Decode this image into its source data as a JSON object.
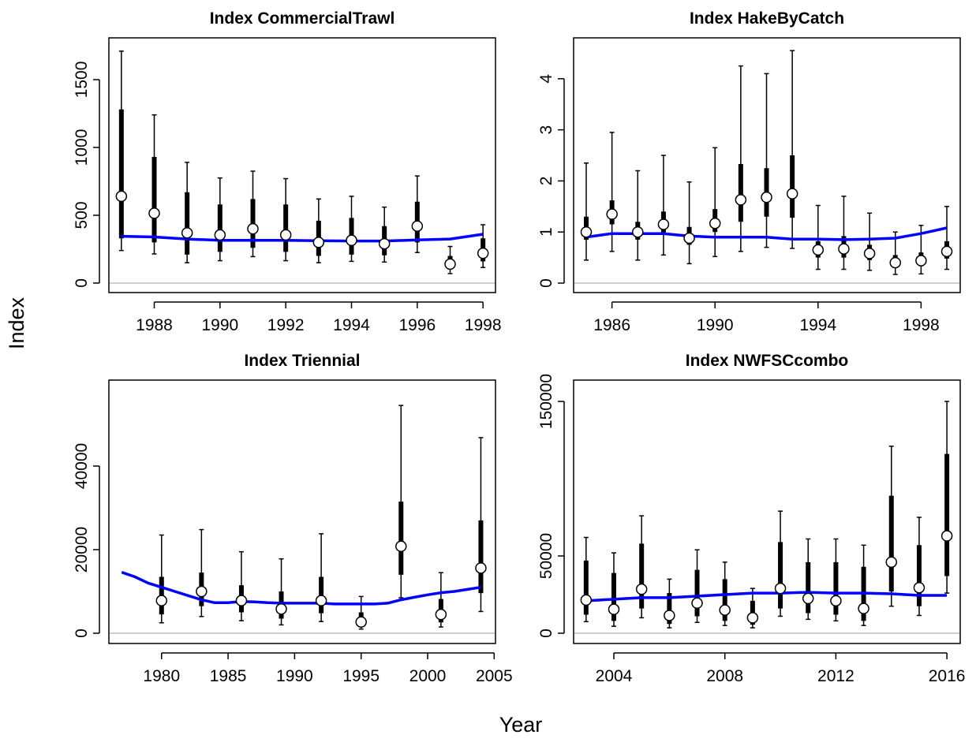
{
  "xlabel": "Year",
  "ylabel": "Index",
  "chart_data": [
    {
      "type": "errorbar",
      "title": "Index CommercialTrawl",
      "x": [
        1987,
        1988,
        1989,
        1990,
        1991,
        1992,
        1993,
        1994,
        1995,
        1996,
        1997,
        1998
      ],
      "values": [
        640,
        515,
        370,
        355,
        400,
        355,
        300,
        315,
        290,
        420,
        140,
        220
      ],
      "lower": [
        240,
        215,
        150,
        165,
        195,
        165,
        150,
        160,
        155,
        225,
        70,
        115
      ],
      "upper": [
        1710,
        1240,
        890,
        775,
        825,
        770,
        620,
        640,
        560,
        790,
        270,
        430
      ],
      "inner_lower": [
        330,
        300,
        210,
        230,
        260,
        230,
        200,
        210,
        205,
        300,
        100,
        160
      ],
      "inner_upper": [
        1280,
        930,
        670,
        580,
        620,
        580,
        460,
        480,
        420,
        600,
        200,
        330
      ],
      "fit": {
        "x": [
          1987,
          1988,
          1989,
          1990,
          1991,
          1992,
          1993,
          1994,
          1995,
          1996,
          1997,
          1998
        ],
        "values": [
          345,
          340,
          325,
          315,
          315,
          315,
          312,
          310,
          310,
          318,
          325,
          360
        ],
        "color": "#0000ff"
      },
      "xlim": [
        1986.62,
        1998.38
      ],
      "ylim": [
        -70,
        1808
      ],
      "xticks": [
        1988,
        1990,
        1992,
        1994,
        1996,
        1998
      ],
      "yticks": [
        0,
        500,
        1000,
        1500
      ],
      "zero_line_color": "#bebebe"
    },
    {
      "type": "errorbar",
      "title": "Index HakeByCatch",
      "x": [
        1985,
        1986,
        1987,
        1988,
        1989,
        1990,
        1991,
        1992,
        1993,
        1994,
        1995,
        1996,
        1997,
        1998,
        1999
      ],
      "values": [
        1.0,
        1.35,
        1.0,
        1.15,
        0.88,
        1.17,
        1.63,
        1.68,
        1.75,
        0.65,
        0.67,
        0.58,
        0.4,
        0.44,
        0.62
      ],
      "lower": [
        0.45,
        0.62,
        0.45,
        0.55,
        0.38,
        0.52,
        0.62,
        0.7,
        0.68,
        0.27,
        0.27,
        0.25,
        0.17,
        0.18,
        0.27
      ],
      "upper": [
        2.35,
        2.95,
        2.2,
        2.5,
        1.98,
        2.65,
        4.25,
        4.1,
        4.55,
        1.52,
        1.7,
        1.37,
        1.0,
        1.13,
        1.5
      ],
      "inner_lower": [
        0.85,
        1.15,
        0.85,
        0.95,
        0.75,
        1.0,
        1.2,
        1.3,
        1.28,
        0.5,
        0.5,
        0.45,
        0.3,
        0.33,
        0.48
      ],
      "inner_upper": [
        1.3,
        1.62,
        1.2,
        1.4,
        1.1,
        1.45,
        2.33,
        2.25,
        2.5,
        0.82,
        0.92,
        0.75,
        0.55,
        0.6,
        0.82
      ],
      "fit": {
        "x": [
          1985,
          1986,
          1987,
          1988,
          1989,
          1990,
          1991,
          1992,
          1993,
          1994,
          1995,
          1996,
          1997,
          1998,
          1999
        ],
        "values": [
          0.9,
          0.97,
          0.97,
          0.97,
          0.92,
          0.9,
          0.9,
          0.9,
          0.86,
          0.86,
          0.85,
          0.86,
          0.88,
          0.97,
          1.08
        ],
        "color": "#0000ff"
      },
      "xlim": [
        1984.51,
        1999.52
      ],
      "ylim": [
        -0.185,
        4.8
      ],
      "xticks": [
        1986,
        1990,
        1994,
        1998
      ],
      "yticks": [
        0,
        1,
        2,
        3,
        4
      ],
      "zero_line_color": "#bebebe"
    },
    {
      "type": "errorbar",
      "title": "Index Triennial",
      "x": [
        1980,
        1983,
        1986,
        1989,
        1992,
        1995,
        1998,
        2001,
        2004
      ],
      "values": [
        7800,
        10000,
        7800,
        5800,
        7800,
        2700,
        20800,
        4500,
        15600
      ],
      "lower": [
        2500,
        4000,
        3000,
        2000,
        2800,
        1000,
        8500,
        1500,
        5200
      ],
      "upper": [
        23500,
        24800,
        19500,
        17800,
        23800,
        8800,
        54500,
        14500,
        46800
      ],
      "inner_lower": [
        4500,
        6500,
        5000,
        3500,
        4800,
        1800,
        14000,
        2600,
        9600
      ],
      "inner_upper": [
        13500,
        14500,
        11500,
        10000,
        13500,
        5000,
        31500,
        8200,
        27000
      ],
      "fit": {
        "x": [
          1977,
          1978,
          1979,
          1980,
          1981,
          1982,
          1983,
          1984,
          1985,
          1986,
          1987,
          1988,
          1989,
          1990,
          1991,
          1992,
          1993,
          1994,
          1995,
          1996,
          1997,
          1998,
          1999,
          2000,
          2001,
          2002,
          2003,
          2004
        ],
        "values": [
          14600,
          13500,
          12000,
          11000,
          10000,
          9000,
          8000,
          7300,
          7300,
          7600,
          7500,
          7300,
          7200,
          7200,
          7200,
          7200,
          7000,
          7000,
          7000,
          7000,
          7200,
          8000,
          8600,
          9200,
          9700,
          10000,
          10500,
          11000
        ],
        "color": "#0000ff"
      },
      "xlim": [
        1976.04,
        2005.1
      ],
      "ylim": [
        -2450,
        60570
      ],
      "xticks": [
        1980,
        1985,
        1990,
        1995,
        2000,
        2005
      ],
      "yticks": [
        0,
        20000,
        40000
      ],
      "zero_line_color": "#bebebe"
    },
    {
      "type": "errorbar",
      "title": "Index NWFSCcombo",
      "x": [
        2003,
        2004,
        2005,
        2006,
        2007,
        2008,
        2009,
        2010,
        2011,
        2012,
        2013,
        2014,
        2015,
        2016
      ],
      "values": [
        21500,
        15500,
        28500,
        11500,
        19500,
        15000,
        10000,
        29000,
        22500,
        21000,
        16000,
        46000,
        29500,
        63000
      ],
      "lower": [
        7500,
        4500,
        10000,
        3500,
        7000,
        5000,
        3500,
        11000,
        9000,
        8000,
        5000,
        17500,
        11500,
        26000
      ],
      "upper": [
        62000,
        52000,
        76000,
        35000,
        54000,
        46000,
        29000,
        79000,
        61000,
        61000,
        57000,
        121000,
        75000,
        150000
      ],
      "inner_lower": [
        12000,
        8000,
        16000,
        6000,
        11000,
        8000,
        5500,
        16000,
        13000,
        12000,
        8000,
        27000,
        17500,
        37000
      ],
      "inner_upper": [
        47000,
        39000,
        58000,
        26000,
        41000,
        35000,
        21000,
        59000,
        46000,
        46000,
        43000,
        89000,
        57000,
        116000
      ],
      "fit": {
        "x": [
          2003,
          2004,
          2005,
          2006,
          2007,
          2008,
          2009,
          2010,
          2011,
          2012,
          2013,
          2014,
          2015,
          2016
        ],
        "values": [
          21000,
          22000,
          23000,
          23000,
          24000,
          25000,
          26000,
          26000,
          26500,
          26000,
          26000,
          25500,
          24500,
          24500
        ],
        "color": "#0000ff"
      },
      "xlim": [
        2002.55,
        2016.48
      ],
      "ylim": [
        -6630,
        163800
      ],
      "xticks": [
        2004,
        2008,
        2012,
        2016
      ],
      "yticks": [
        0,
        50000,
        150000
      ],
      "zero_line_color": "#bebebe"
    }
  ]
}
